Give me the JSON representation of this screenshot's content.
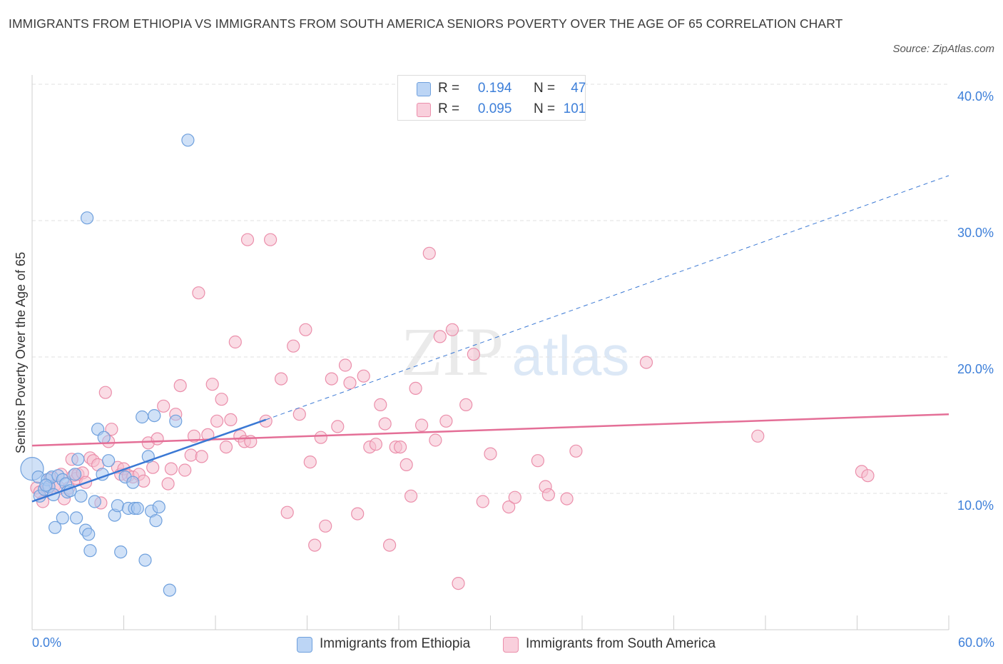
{
  "title": "IMMIGRANTS FROM ETHIOPIA VS IMMIGRANTS FROM SOUTH AMERICA SENIORS POVERTY OVER THE AGE OF 65 CORRELATION CHART",
  "source": "Source: ZipAtlas.com",
  "watermark": {
    "zip": "ZIP",
    "atlas": "atlas"
  },
  "legend_top": [
    {
      "r_label": "R =",
      "r_value": "0.194",
      "n_label": "N =",
      "n_value": "47"
    },
    {
      "r_label": "R =",
      "r_value": "0.095",
      "n_label": "N =",
      "n_value": "101"
    }
  ],
  "colors": {
    "ethiopia_fill": "#a9c8f0",
    "ethiopia_stroke": "#6fa0dd",
    "ethiopia_line": "#3a78d4",
    "sa_fill": "#f5c0d0",
    "sa_stroke": "#eb8fab",
    "sa_line": "#e46f97",
    "axis_label": "#3d7fd9",
    "grid": "#e0e0e0"
  },
  "chart_data": {
    "type": "scatter",
    "title": "IMMIGRANTS FROM ETHIOPIA VS IMMIGRANTS FROM SOUTH AMERICA SENIORS POVERTY OVER THE AGE OF 65 CORRELATION CHART",
    "xlabel": "",
    "ylabel": "Seniors Poverty Over the Age of 65",
    "xlim": [
      0,
      60
    ],
    "ylim": [
      0,
      40
    ],
    "x_tick_labels": [
      "0.0%",
      "60.0%"
    ],
    "y_tick_labels": [
      "10.0%",
      "20.0%",
      "30.0%",
      "40.0%"
    ],
    "y_ticks": [
      10,
      20,
      30,
      40
    ],
    "grid": true,
    "legend": [
      "Immigrants from Ethiopia",
      "Immigrants from South America"
    ],
    "series": [
      {
        "name": "Immigrants from Ethiopia",
        "r": 0.194,
        "n": 47,
        "trend": {
          "solid": [
            [
              0.0,
              9.4
            ],
            [
              15.3,
              15.4
            ]
          ],
          "dashed": [
            [
              15.3,
              15.4
            ],
            [
              60.0,
              33.3
            ]
          ]
        },
        "points": [
          [
            0.0,
            11.8
          ],
          [
            0.4,
            11.2
          ],
          [
            0.5,
            9.8
          ],
          [
            0.8,
            10.3
          ],
          [
            1.0,
            11.0
          ],
          [
            1.1,
            10.5
          ],
          [
            1.3,
            11.2
          ],
          [
            1.4,
            9.9
          ],
          [
            1.7,
            11.3
          ],
          [
            2.0,
            11.0
          ],
          [
            2.2,
            10.7
          ],
          [
            2.3,
            10.1
          ],
          [
            2.5,
            10.2
          ],
          [
            2.8,
            11.4
          ],
          [
            3.0,
            12.5
          ],
          [
            3.2,
            9.8
          ],
          [
            3.5,
            7.3
          ],
          [
            3.7,
            7.0
          ],
          [
            3.8,
            5.8
          ],
          [
            4.1,
            9.4
          ],
          [
            4.3,
            14.7
          ],
          [
            4.6,
            11.4
          ],
          [
            4.7,
            14.1
          ],
          [
            5.0,
            12.4
          ],
          [
            5.4,
            8.4
          ],
          [
            5.6,
            9.1
          ],
          [
            5.8,
            5.7
          ],
          [
            6.1,
            11.2
          ],
          [
            6.3,
            8.9
          ],
          [
            6.6,
            10.8
          ],
          [
            6.7,
            8.9
          ],
          [
            6.9,
            8.9
          ],
          [
            7.2,
            15.6
          ],
          [
            7.4,
            5.1
          ],
          [
            7.6,
            12.7
          ],
          [
            7.8,
            8.7
          ],
          [
            8.0,
            15.7
          ],
          [
            8.1,
            8.0
          ],
          [
            8.3,
            9.0
          ],
          [
            9.0,
            2.9
          ],
          [
            9.4,
            15.3
          ],
          [
            10.2,
            35.9
          ],
          [
            3.6,
            30.2
          ],
          [
            1.5,
            7.5
          ],
          [
            2.0,
            8.2
          ],
          [
            2.9,
            8.2
          ],
          [
            0.9,
            10.6
          ]
        ]
      },
      {
        "name": "Immigrants from South America",
        "r": 0.095,
        "n": 101,
        "trend": {
          "solid": [
            [
              0.0,
              13.5
            ],
            [
              60.0,
              15.8
            ]
          ]
        },
        "points": [
          [
            0.3,
            10.4
          ],
          [
            0.5,
            10.1
          ],
          [
            0.7,
            9.4
          ],
          [
            1.0,
            10.3
          ],
          [
            1.2,
            11.1
          ],
          [
            1.5,
            10.6
          ],
          [
            1.7,
            10.5
          ],
          [
            1.9,
            11.4
          ],
          [
            2.1,
            9.6
          ],
          [
            2.4,
            10.4
          ],
          [
            2.6,
            12.5
          ],
          [
            2.7,
            11.3
          ],
          [
            2.9,
            11.1
          ],
          [
            3.0,
            11.4
          ],
          [
            3.3,
            11.5
          ],
          [
            3.5,
            10.8
          ],
          [
            3.8,
            12.6
          ],
          [
            4.0,
            12.4
          ],
          [
            4.3,
            12.1
          ],
          [
            4.5,
            9.3
          ],
          [
            4.8,
            17.4
          ],
          [
            5.0,
            13.8
          ],
          [
            5.2,
            14.7
          ],
          [
            5.6,
            11.9
          ],
          [
            5.8,
            11.4
          ],
          [
            6.0,
            11.8
          ],
          [
            6.3,
            11.3
          ],
          [
            6.6,
            11.2
          ],
          [
            7.0,
            11.4
          ],
          [
            7.3,
            10.9
          ],
          [
            7.6,
            13.7
          ],
          [
            7.9,
            11.9
          ],
          [
            8.2,
            14.0
          ],
          [
            8.6,
            16.4
          ],
          [
            8.9,
            10.7
          ],
          [
            9.1,
            11.8
          ],
          [
            9.4,
            15.8
          ],
          [
            9.7,
            17.9
          ],
          [
            10.0,
            11.7
          ],
          [
            10.4,
            12.8
          ],
          [
            10.6,
            14.2
          ],
          [
            10.9,
            24.7
          ],
          [
            11.1,
            12.7
          ],
          [
            11.5,
            14.3
          ],
          [
            11.8,
            18.0
          ],
          [
            12.1,
            15.3
          ],
          [
            12.4,
            16.9
          ],
          [
            12.7,
            13.4
          ],
          [
            13.0,
            15.4
          ],
          [
            13.3,
            21.1
          ],
          [
            13.6,
            14.2
          ],
          [
            13.9,
            13.8
          ],
          [
            14.1,
            28.6
          ],
          [
            14.3,
            13.8
          ],
          [
            15.3,
            15.3
          ],
          [
            15.6,
            28.6
          ],
          [
            16.3,
            18.4
          ],
          [
            16.7,
            8.6
          ],
          [
            17.1,
            20.8
          ],
          [
            17.5,
            15.8
          ],
          [
            17.9,
            22.0
          ],
          [
            18.2,
            12.3
          ],
          [
            18.5,
            6.2
          ],
          [
            18.9,
            14.1
          ],
          [
            19.2,
            7.6
          ],
          [
            19.6,
            18.4
          ],
          [
            20.0,
            14.9
          ],
          [
            20.5,
            19.4
          ],
          [
            20.8,
            18.1
          ],
          [
            21.3,
            8.5
          ],
          [
            21.7,
            18.6
          ],
          [
            22.1,
            13.4
          ],
          [
            22.5,
            13.6
          ],
          [
            22.8,
            16.5
          ],
          [
            23.1,
            15.1
          ],
          [
            23.4,
            6.2
          ],
          [
            23.8,
            13.4
          ],
          [
            24.1,
            13.4
          ],
          [
            24.5,
            12.1
          ],
          [
            24.8,
            9.8
          ],
          [
            25.1,
            17.7
          ],
          [
            25.5,
            15.0
          ],
          [
            26.0,
            27.6
          ],
          [
            26.4,
            13.9
          ],
          [
            26.7,
            21.5
          ],
          [
            27.1,
            15.3
          ],
          [
            27.5,
            22.0
          ],
          [
            27.9,
            3.4
          ],
          [
            28.4,
            16.5
          ],
          [
            28.9,
            20.2
          ],
          [
            29.5,
            9.4
          ],
          [
            30.0,
            12.9
          ],
          [
            31.2,
            9.0
          ],
          [
            31.6,
            9.7
          ],
          [
            33.1,
            12.4
          ],
          [
            33.6,
            10.5
          ],
          [
            33.8,
            9.9
          ],
          [
            35.0,
            9.6
          ],
          [
            35.6,
            13.1
          ],
          [
            40.2,
            19.6
          ],
          [
            47.5,
            14.2
          ],
          [
            54.3,
            11.6
          ],
          [
            54.7,
            11.3
          ]
        ]
      }
    ]
  }
}
